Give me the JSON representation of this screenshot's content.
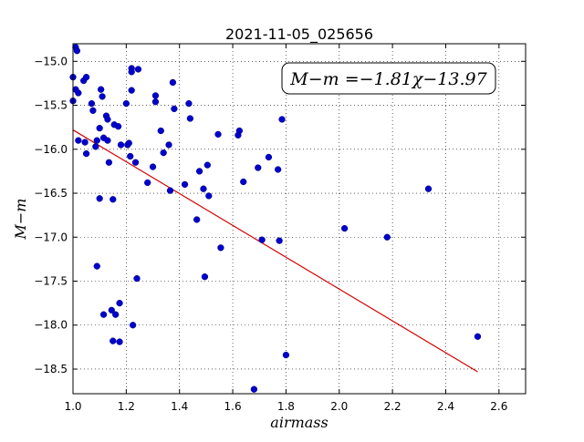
{
  "chart_data": {
    "type": "scatter",
    "title": "2021-11-05_025656",
    "xlabel": "airmass",
    "ylabel": "M−m",
    "xlim": [
      1.0,
      2.7
    ],
    "ylim": [
      -18.78,
      -14.8
    ],
    "xticks": [
      1.0,
      1.2,
      1.4,
      1.6,
      1.8,
      2.0,
      2.2,
      2.4,
      2.6
    ],
    "xtick_labels": [
      "1.0",
      "1.2",
      "1.4",
      "1.6",
      "1.8",
      "2.0",
      "2.2",
      "2.4",
      "2.6"
    ],
    "yticks": [
      -15.0,
      -15.5,
      -16.0,
      -16.5,
      -17.0,
      -17.5,
      -18.0,
      -18.5
    ],
    "ytick_labels": [
      "−15.0",
      "−15.5",
      "−16.0",
      "−16.5",
      "−17.0",
      "−17.5",
      "−18.0",
      "−18.5"
    ],
    "grid": true,
    "annotation": "M−m =−1.81χ−13.97",
    "annotation_position": "top-right",
    "fit": {
      "slope": -1.81,
      "intercept": -13.97,
      "x_range": [
        1.0,
        2.52
      ],
      "color": "#d40000"
    },
    "point_color": "#0000cc",
    "points": [
      [
        1.0,
        -15.18
      ],
      [
        1.0,
        -15.45
      ],
      [
        1.01,
        -14.84
      ],
      [
        1.015,
        -14.88
      ],
      [
        1.01,
        -15.32
      ],
      [
        1.02,
        -15.36
      ],
      [
        1.02,
        -15.9
      ],
      [
        1.04,
        -15.22
      ],
      [
        1.05,
        -15.18
      ],
      [
        1.045,
        -15.92
      ],
      [
        1.05,
        -16.05
      ],
      [
        1.07,
        -15.48
      ],
      [
        1.075,
        -15.56
      ],
      [
        1.085,
        -15.97
      ],
      [
        1.09,
        -15.9
      ],
      [
        1.09,
        -17.33
      ],
      [
        1.1,
        -15.76
      ],
      [
        1.1,
        -16.56
      ],
      [
        1.105,
        -15.32
      ],
      [
        1.11,
        -15.4
      ],
      [
        1.115,
        -15.87
      ],
      [
        1.115,
        -17.88
      ],
      [
        1.125,
        -15.62
      ],
      [
        1.13,
        -15.66
      ],
      [
        1.13,
        -15.9
      ],
      [
        1.135,
        -16.15
      ],
      [
        1.145,
        -17.83
      ],
      [
        1.15,
        -16.57
      ],
      [
        1.15,
        -18.18
      ],
      [
        1.155,
        -15.72
      ],
      [
        1.16,
        -17.88
      ],
      [
        1.17,
        -15.74
      ],
      [
        1.175,
        -17.75
      ],
      [
        1.175,
        -18.19
      ],
      [
        1.18,
        -15.95
      ],
      [
        1.2,
        -15.48
      ],
      [
        1.205,
        -15.95
      ],
      [
        1.21,
        -15.93
      ],
      [
        1.215,
        -16.08
      ],
      [
        1.22,
        -15.08
      ],
      [
        1.22,
        -15.33
      ],
      [
        1.22,
        -15.12
      ],
      [
        1.225,
        -18.0
      ],
      [
        1.235,
        -16.15
      ],
      [
        1.24,
        -17.47
      ],
      [
        1.245,
        -15.09
      ],
      [
        1.28,
        -16.38
      ],
      [
        1.3,
        -16.2
      ],
      [
        1.31,
        -15.39
      ],
      [
        1.31,
        -15.46
      ],
      [
        1.33,
        -15.79
      ],
      [
        1.34,
        -16.04
      ],
      [
        1.36,
        -15.95
      ],
      [
        1.365,
        -16.47
      ],
      [
        1.375,
        -15.24
      ],
      [
        1.38,
        -15.54
      ],
      [
        1.42,
        -16.4
      ],
      [
        1.435,
        -15.48
      ],
      [
        1.44,
        -15.65
      ],
      [
        1.465,
        -16.8
      ],
      [
        1.475,
        -16.25
      ],
      [
        1.49,
        -16.45
      ],
      [
        1.495,
        -17.45
      ],
      [
        1.505,
        -16.18
      ],
      [
        1.51,
        -16.53
      ],
      [
        1.545,
        -15.83
      ],
      [
        1.555,
        -17.12
      ],
      [
        1.62,
        -15.84
      ],
      [
        1.625,
        -15.79
      ],
      [
        1.64,
        -16.37
      ],
      [
        1.68,
        -18.73
      ],
      [
        1.695,
        -16.21
      ],
      [
        1.71,
        -17.03
      ],
      [
        1.735,
        -16.09
      ],
      [
        1.77,
        -16.23
      ],
      [
        1.775,
        -17.04
      ],
      [
        1.785,
        -15.66
      ],
      [
        1.8,
        -18.34
      ],
      [
        2.02,
        -16.9
      ],
      [
        2.18,
        -17.0
      ],
      [
        2.335,
        -16.45
      ],
      [
        2.52,
        -18.13
      ]
    ]
  }
}
